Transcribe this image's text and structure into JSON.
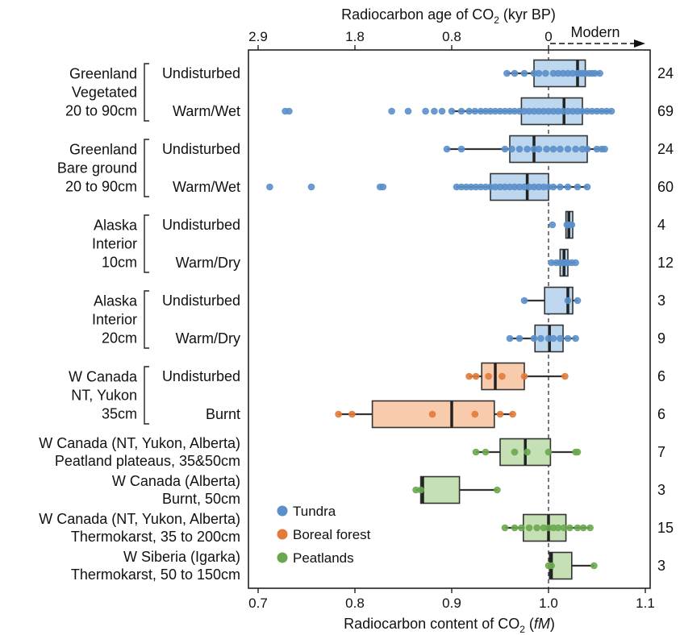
{
  "chart_data": {
    "type": "box",
    "top_axis": {
      "label_pre": "Radiocarbon age of CO",
      "label_sub": "2",
      "label_post": " (kyr BP)",
      "ticks": [
        {
          "label": "2.9",
          "fm": 0.7
        },
        {
          "label": "1.8",
          "fm": 0.8
        },
        {
          "label": "0.8",
          "fm": 0.9
        },
        {
          "label": "0",
          "fm": 1.0
        }
      ],
      "modern_label": "Modern"
    },
    "bottom_axis": {
      "label_pre": "Radiocarbon content of CO",
      "label_sub": "2",
      "label_mid": " (",
      "label_unit": "fM",
      "label_post": ")",
      "xlim": [
        0.69,
        1.105
      ],
      "ticks": [
        {
          "label": "0.7",
          "v": 0.7
        },
        {
          "label": "0.8",
          "v": 0.8
        },
        {
          "label": "0.9",
          "v": 0.9
        },
        {
          "label": "1.0",
          "v": 1.0
        },
        {
          "label": "1.1",
          "v": 1.1
        }
      ],
      "reference_line": 1.0
    },
    "legend": [
      {
        "label": "Tundra",
        "color": "#5b8fc9"
      },
      {
        "label": "Boreal forest",
        "color": "#e27b3b"
      },
      {
        "label": "Peatlands",
        "color": "#6aa84f"
      }
    ],
    "colors": {
      "tundra": {
        "fill": "#bdd7ee",
        "point": "#5b8fc9"
      },
      "boreal": {
        "fill": "#f8cbad",
        "point": "#e27b3b"
      },
      "peat": {
        "fill": "#c5e0b4",
        "point": "#6aa84f"
      }
    },
    "groups": [
      {
        "lines": [
          "Greenland",
          "Vegetated",
          "20 to 90cm"
        ],
        "rows": [
          0,
          1
        ]
      },
      {
        "lines": [
          "Greenland",
          "Bare ground",
          "20 to 90cm"
        ],
        "rows": [
          2,
          3
        ]
      },
      {
        "lines": [
          "Alaska",
          "Interior",
          "10cm"
        ],
        "rows": [
          4,
          5
        ]
      },
      {
        "lines": [
          "Alaska",
          "Interior",
          "20cm"
        ],
        "rows": [
          6,
          7
        ]
      },
      {
        "lines": [
          "W Canada",
          "NT, Yukon",
          "35cm"
        ],
        "rows": [
          8,
          9
        ]
      },
      {
        "lines": [
          "W Canada (NT, Yukon, Alberta)",
          "Peatland plateaus, 35&50cm"
        ],
        "rows": [
          10
        ]
      },
      {
        "lines": [
          "W Canada (Alberta)",
          "Burnt, 50cm"
        ],
        "rows": [
          11
        ]
      },
      {
        "lines": [
          "W Canada (NT, Yukon, Alberta)",
          "Thermokarst, 35 to 200cm"
        ],
        "rows": [
          12
        ]
      },
      {
        "lines": [
          "W Siberia (Igarka)",
          "Thermokarst, 50 to 150cm"
        ],
        "rows": [
          13
        ]
      }
    ],
    "rows": [
      {
        "sub": "Undisturbed",
        "n": "24",
        "eco": "tundra",
        "wl": 0.957,
        "q1": 0.985,
        "med": 1.03,
        "q3": 1.038,
        "wh": 1.053,
        "points": [
          0.957,
          0.965,
          0.975,
          0.985,
          0.99,
          0.997,
          1.005,
          1.01,
          1.015,
          1.02,
          1.025,
          1.03,
          1.032,
          1.035,
          1.038,
          1.042,
          1.045,
          1.048,
          1.053
        ]
      },
      {
        "sub": "Warm/Wet",
        "n": "69",
        "eco": "tundra",
        "wl": 0.9,
        "q1": 0.972,
        "med": 1.016,
        "q3": 1.035,
        "wh": 1.065,
        "points": [
          0.728,
          0.732,
          0.838,
          0.855,
          0.873,
          0.882,
          0.89,
          0.9,
          0.91,
          0.918,
          0.924,
          0.93,
          0.935,
          0.94,
          0.945,
          0.95,
          0.955,
          0.96,
          0.965,
          0.97,
          0.975,
          0.98,
          0.985,
          0.99,
          0.995,
          1.0,
          1.005,
          1.01,
          1.015,
          1.02,
          1.025,
          1.03,
          1.035,
          1.04,
          1.045,
          1.05,
          1.055,
          1.06,
          1.065
        ]
      },
      {
        "sub": "Undisturbed",
        "n": "24",
        "eco": "tundra",
        "wl": 0.895,
        "q1": 0.96,
        "med": 0.985,
        "q3": 1.04,
        "wh": 1.058,
        "points": [
          0.895,
          0.91,
          0.955,
          0.962,
          0.97,
          0.978,
          0.985,
          0.99,
          0.998,
          1.005,
          1.012,
          1.02,
          1.028,
          1.035,
          1.04,
          1.05,
          1.055,
          1.058
        ]
      },
      {
        "sub": "Warm/Wet",
        "n": "60",
        "eco": "tundra",
        "wl": 0.905,
        "q1": 0.94,
        "med": 0.978,
        "q3": 1.0,
        "wh": 1.04,
        "points": [
          0.712,
          0.755,
          0.826,
          0.829,
          0.905,
          0.91,
          0.915,
          0.92,
          0.925,
          0.93,
          0.935,
          0.94,
          0.945,
          0.95,
          0.955,
          0.96,
          0.965,
          0.97,
          0.975,
          0.98,
          0.985,
          0.99,
          0.995,
          1.0,
          1.005,
          1.012,
          1.02,
          1.03,
          1.04
        ]
      },
      {
        "sub": "Undisturbed",
        "n": "4",
        "eco": "tundra",
        "wl": 1.018,
        "q1": 1.018,
        "med": 1.021,
        "q3": 1.025,
        "wh": 1.025,
        "points": [
          1.004,
          1.019,
          1.021,
          1.024
        ]
      },
      {
        "sub": "Warm/Dry",
        "n": "12",
        "eco": "tundra",
        "wl": 1.003,
        "q1": 1.012,
        "med": 1.016,
        "q3": 1.02,
        "wh": 1.028,
        "points": [
          1.003,
          1.008,
          1.012,
          1.014,
          1.016,
          1.018,
          1.02,
          1.024,
          1.028
        ]
      },
      {
        "sub": "Undisturbed",
        "n": "3",
        "eco": "tundra",
        "wl": 0.975,
        "q1": 0.996,
        "med": 1.02,
        "q3": 1.025,
        "wh": 1.03,
        "points": [
          0.975,
          1.02,
          1.03
        ]
      },
      {
        "sub": "Warm/Dry",
        "n": "9",
        "eco": "tundra",
        "wl": 0.96,
        "q1": 0.986,
        "med": 1.001,
        "q3": 1.015,
        "wh": 1.028,
        "points": [
          0.96,
          0.97,
          0.985,
          0.992,
          1.0,
          1.005,
          1.012,
          1.02,
          1.028
        ]
      },
      {
        "sub": "Undisturbed",
        "n": "6",
        "eco": "boreal",
        "wl": 0.918,
        "q1": 0.931,
        "med": 0.945,
        "q3": 0.975,
        "wh": 1.017,
        "points": [
          0.918,
          0.925,
          0.938,
          0.952,
          0.975,
          1.017
        ]
      },
      {
        "sub": "Burnt",
        "n": "6",
        "eco": "boreal",
        "wl": 0.783,
        "q1": 0.818,
        "med": 0.9,
        "q3": 0.944,
        "wh": 0.963,
        "points": [
          0.783,
          0.797,
          0.88,
          0.924,
          0.95,
          0.963
        ]
      },
      {
        "sub": "",
        "n": "7",
        "eco": "peat",
        "wl": 0.925,
        "q1": 0.95,
        "med": 0.976,
        "q3": 1.002,
        "wh": 1.03,
        "points": [
          0.925,
          0.935,
          0.965,
          0.978,
          1.0,
          1.028,
          1.03
        ]
      },
      {
        "sub": "",
        "n": "3",
        "eco": "peat",
        "wl": 0.863,
        "q1": 0.868,
        "med": 0.87,
        "q3": 0.908,
        "wh": 0.947,
        "points": [
          0.863,
          0.868,
          0.947
        ]
      },
      {
        "sub": "",
        "n": "15",
        "eco": "peat",
        "wl": 0.955,
        "q1": 0.974,
        "med": 1.0,
        "q3": 1.018,
        "wh": 1.043,
        "points": [
          0.955,
          0.965,
          0.972,
          0.98,
          0.988,
          0.995,
          1.0,
          1.005,
          1.01,
          1.016,
          1.022,
          1.03,
          1.036,
          1.043
        ]
      },
      {
        "sub": "",
        "n": "3",
        "eco": "peat",
        "wl": 1.0,
        "q1": 1.001,
        "med": 1.003,
        "q3": 1.024,
        "wh": 1.047,
        "points": [
          1.0,
          1.003,
          1.047
        ]
      }
    ]
  }
}
